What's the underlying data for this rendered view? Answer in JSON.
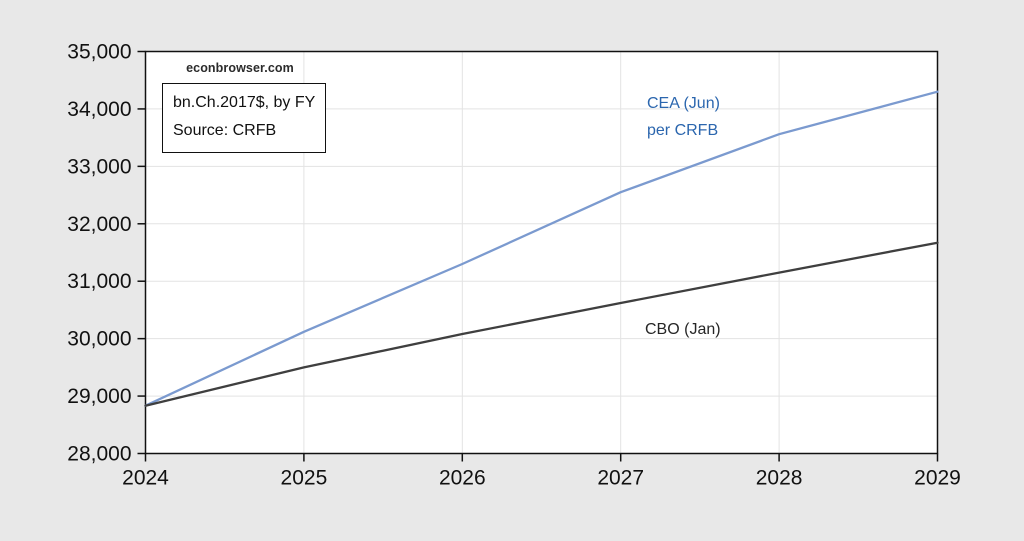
{
  "page": {
    "background": "#e8e8e8",
    "watermark": "econbrowser.com"
  },
  "annotation_box": {
    "line1": "bn.Ch.2017$, by FY",
    "line2": "Source: CRFB"
  },
  "labels": {
    "cea_line1": "CEA (Jun)",
    "cea_line2": "per CRFB",
    "cbo": "CBO (Jan)"
  },
  "colors": {
    "cea_line": "#7b9acf",
    "cea_text": "#2b66ae",
    "cbo_line": "#3f3f3f",
    "axis": "#111111",
    "gridline": "#e3e3e3",
    "tick_text": "#111111",
    "plot_background": "#ffffff",
    "outer_background": "#e8e8e8"
  },
  "chart_data": {
    "type": "line",
    "title": "",
    "xlabel": "",
    "ylabel": "",
    "x": [
      2024,
      2025,
      2026,
      2027,
      2028,
      2029
    ],
    "series": [
      {
        "name": "CEA (Jun) per CRFB",
        "color": "#7b9acf",
        "values": [
          28833,
          30120,
          31300,
          32550,
          33560,
          34300
        ]
      },
      {
        "name": "CBO (Jan)",
        "color": "#3f3f3f",
        "values": [
          28833,
          29500,
          30080,
          30620,
          31150,
          31670
        ]
      }
    ],
    "xlim": [
      2024,
      2029
    ],
    "ylim": [
      28000,
      35000
    ],
    "yticks": [
      28000,
      29000,
      30000,
      31000,
      32000,
      33000,
      34000,
      35000
    ],
    "ytick_labels": [
      "28,000",
      "29,000",
      "30,000",
      "31,000",
      "32,000",
      "33,000",
      "34,000",
      "35,000"
    ],
    "xticks": [
      2024,
      2025,
      2026,
      2027,
      2028,
      2029
    ],
    "xtick_labels": [
      "2024",
      "2025",
      "2026",
      "2027",
      "2028",
      "2029"
    ],
    "grid": true,
    "legend_position": "inline-annotations"
  }
}
